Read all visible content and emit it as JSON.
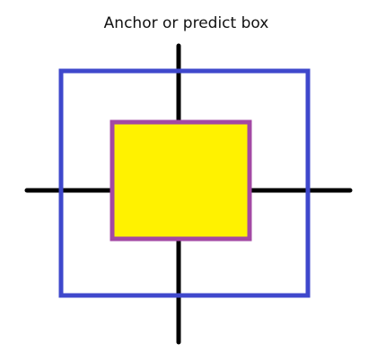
{
  "title": "Anchor or predict box",
  "colors": {
    "background": "#ffffff",
    "axis": "#000000",
    "outer_box": "#3f48cc",
    "inner_box_stroke": "#a349a4",
    "inner_box_fill": "#fff200",
    "title_text": "#111111"
  }
}
